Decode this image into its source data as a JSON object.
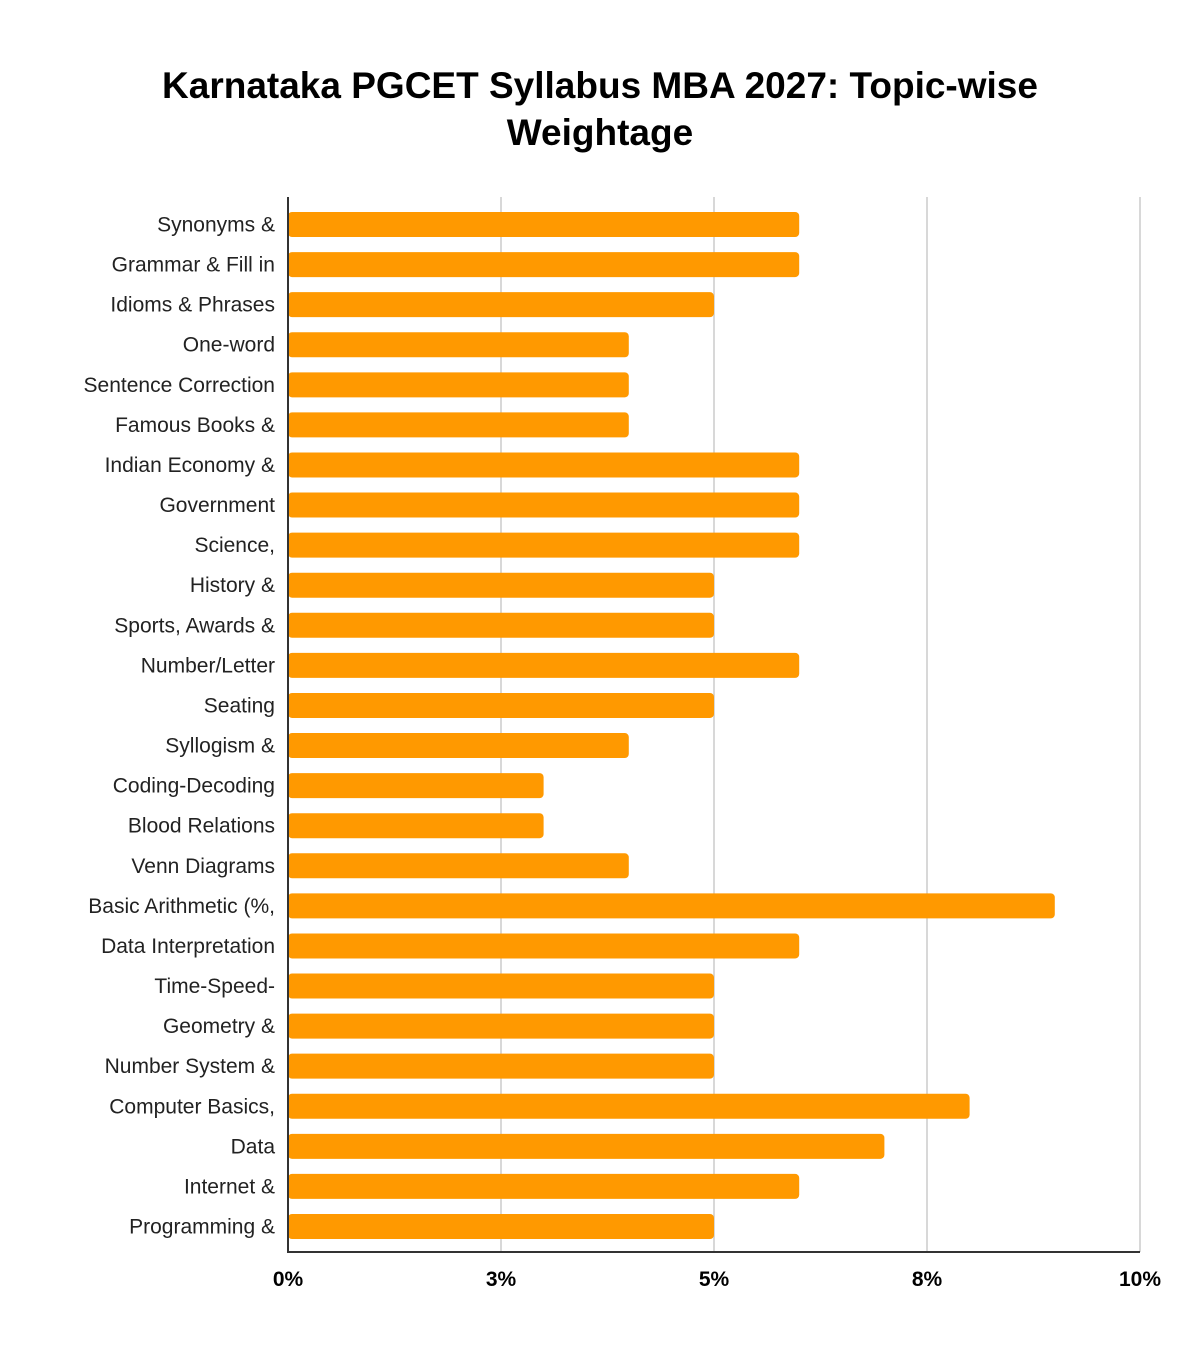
{
  "chart_data": {
    "type": "bar",
    "orientation": "horizontal",
    "title_lines": [
      "Karnataka PGCET Syllabus MBA 2027: Topic-wise",
      "Weightage"
    ],
    "xlabel": "",
    "ylabel": "",
    "categories": [
      "Synonyms &",
      "Grammar & Fill in",
      "Idioms & Phrases",
      "One-word",
      "Sentence Correction",
      "Famous Books &",
      "Indian Economy &",
      "Government",
      "Science,",
      "History &",
      "Sports, Awards &",
      "Number/Letter",
      "Seating",
      "Syllogism &",
      "Coding-Decoding",
      "Blood Relations",
      "Venn Diagrams",
      "Basic Arithmetic (%,",
      "Data Interpretation",
      "Time-Speed-",
      "Geometry &",
      "Number System &",
      "Computer Basics,",
      "Data",
      "Internet &",
      "Programming &"
    ],
    "values": [
      6,
      6,
      5,
      4,
      4,
      4,
      6,
      6,
      6,
      5,
      5,
      6,
      5,
      4,
      3,
      3,
      4,
      9,
      6,
      5,
      5,
      5,
      8,
      7,
      6,
      5
    ],
    "value_unit": "%",
    "xlim": [
      0,
      10
    ],
    "ticks": [
      0,
      2.5,
      5,
      7.5,
      10
    ],
    "tick_labels": [
      "0%",
      "3%",
      "5%",
      "8%",
      "10%"
    ],
    "grid": "vertical",
    "legend": "none",
    "bar_color": "#ff9900"
  }
}
